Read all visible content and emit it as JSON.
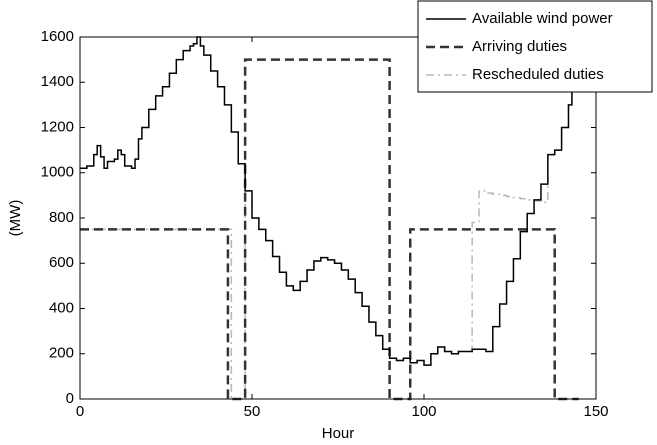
{
  "chart_data": {
    "type": "line",
    "step": "post",
    "x_label": "Hour",
    "y_label": "(MW)",
    "xlim": [
      0,
      150
    ],
    "ylim": [
      0,
      1600
    ],
    "xticks": [
      0,
      50,
      100,
      150
    ],
    "yticks": [
      0,
      200,
      400,
      600,
      800,
      1000,
      1200,
      1400,
      1600
    ],
    "legend": "upper right",
    "series": [
      {
        "name": "Available wind power",
        "color": "#000000",
        "dash": "solid",
        "x": [
          0,
          2,
          4,
          5,
          6,
          7,
          8,
          10,
          11,
          12,
          13,
          15,
          16,
          17,
          18,
          20,
          22,
          24,
          26,
          28,
          30,
          32,
          33,
          34,
          35,
          36,
          38,
          40,
          42,
          44,
          46,
          48,
          50,
          52,
          54,
          56,
          58,
          60,
          62,
          64,
          66,
          68,
          70,
          72,
          74,
          76,
          78,
          80,
          82,
          84,
          86,
          88,
          90,
          92,
          94,
          96,
          98,
          100,
          102,
          104,
          106,
          108,
          110,
          112,
          114,
          116,
          118,
          120,
          122,
          124,
          126,
          128,
          130,
          132,
          134,
          136,
          138,
          140,
          142,
          143
        ],
        "values": [
          1020,
          1030,
          1080,
          1120,
          1070,
          1020,
          1050,
          1060,
          1100,
          1080,
          1030,
          1020,
          1060,
          1150,
          1200,
          1280,
          1340,
          1380,
          1440,
          1500,
          1540,
          1560,
          1570,
          1600,
          1560,
          1520,
          1450,
          1380,
          1300,
          1180,
          1040,
          920,
          800,
          750,
          700,
          630,
          560,
          500,
          480,
          520,
          570,
          610,
          625,
          615,
          600,
          570,
          530,
          470,
          410,
          340,
          280,
          220,
          180,
          170,
          180,
          160,
          170,
          150,
          200,
          230,
          210,
          200,
          210,
          210,
          220,
          220,
          210,
          320,
          420,
          520,
          620,
          740,
          820,
          880,
          950,
          1080,
          1100,
          1200,
          1300,
          1400
        ]
      },
      {
        "name": "Arriving duties",
        "color": "#333333",
        "dash": "dashed",
        "x": [
          0,
          43,
          48,
          90,
          96,
          138,
          145
        ],
        "values": [
          750,
          0,
          1500,
          0,
          750,
          0,
          0
        ]
      },
      {
        "name": "Rescheduled duties",
        "color": "#b8b8b8",
        "dash": "dashdot",
        "x": [
          0,
          44,
          48,
          50,
          52,
          54,
          56,
          58,
          60,
          62,
          64,
          66,
          68,
          70,
          72,
          74,
          76,
          78,
          80,
          82,
          84,
          86,
          88,
          90,
          92,
          94,
          96,
          98,
          100,
          102,
          104,
          106,
          108,
          110,
          112,
          114,
          116,
          118,
          120,
          122,
          124,
          126,
          128,
          130,
          132,
          134,
          136,
          138,
          140,
          142,
          143
        ],
        "values": [
          750,
          0,
          920,
          800,
          750,
          700,
          630,
          560,
          500,
          480,
          520,
          570,
          610,
          625,
          615,
          600,
          570,
          530,
          470,
          410,
          340,
          280,
          220,
          180,
          170,
          180,
          160,
          170,
          150,
          200,
          230,
          210,
          200,
          210,
          210,
          780,
          920,
          910,
          905,
          900,
          895,
          890,
          885,
          880,
          875,
          870,
          1080,
          1100,
          1200,
          1300,
          1400
        ]
      }
    ]
  }
}
